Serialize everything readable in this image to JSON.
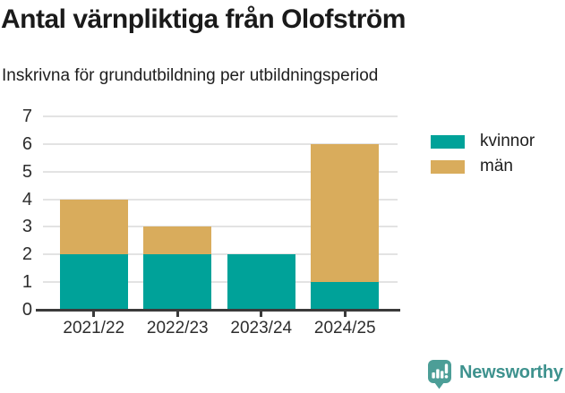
{
  "chart_data": {
    "type": "bar",
    "stacked": true,
    "title": "Antal värnpliktiga från Olofström",
    "subtitle": "Inskrivna för grundutbildning per utbildningsperiod",
    "categories": [
      "2021/22",
      "2022/23",
      "2023/24",
      "2024/25"
    ],
    "series": [
      {
        "name": "kvinnor",
        "color": "#00A299",
        "values": [
          2,
          2,
          2,
          1
        ]
      },
      {
        "name": "män",
        "color": "#D9AC5C",
        "values": [
          2,
          1,
          0,
          5
        ]
      }
    ],
    "totals": [
      4,
      3,
      2,
      6
    ],
    "ylim": [
      0,
      7
    ],
    "yticks": [
      0,
      1,
      2,
      3,
      4,
      5,
      6,
      7
    ],
    "grid": "horizontal",
    "legend_position": "right",
    "xlabel": "",
    "ylabel": ""
  },
  "branding": {
    "name": "Newsworthy",
    "icon": "newsworthy-speech-bubble-bar-chart-icon",
    "text_color": "#3E928E",
    "icon_color": "#4C9E97"
  },
  "colors": {
    "bar_kvinnor": "#00A299",
    "bar_man": "#D9AC5C",
    "gridline": "#E3E3E3",
    "axis": "#3A3A3A",
    "title_text": "#1A1A1A",
    "axis_text": "#2D2D2D"
  }
}
